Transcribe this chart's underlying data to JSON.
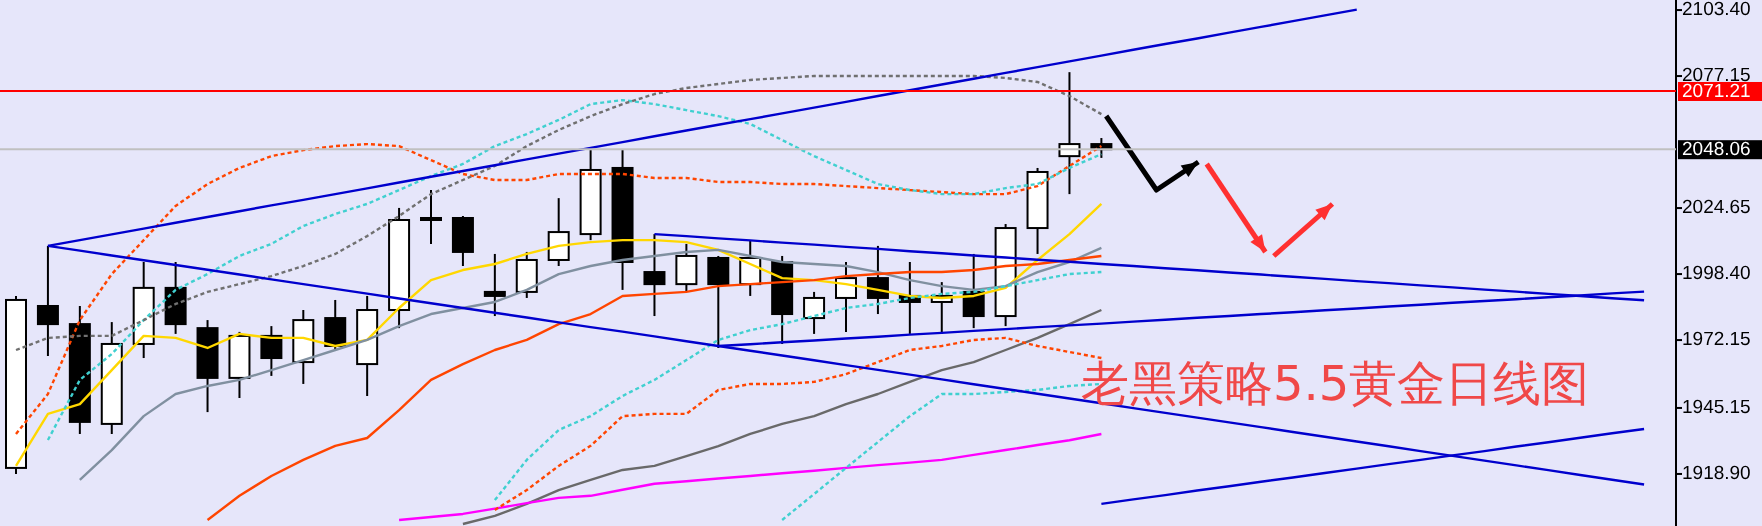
{
  "chart_data": {
    "type": "candlestick",
    "title": "老黑策略5.5黄金日线图",
    "categories": [
      null,
      null,
      null,
      null,
      null,
      null,
      null,
      null,
      null,
      null,
      null,
      null,
      null,
      null,
      null,
      null,
      null,
      null,
      null,
      null,
      null,
      null,
      null,
      null,
      null,
      null,
      null,
      null,
      null,
      null,
      null,
      null,
      null,
      null,
      null,
      null,
      null,
      null,
      null,
      null,
      null,
      null,
      null,
      null,
      null,
      null,
      null,
      null,
      null,
      null,
      null,
      null
    ],
    "ohlc": [
      [
        1921.3,
        1989.7,
        1918.9,
        1988.1
      ],
      [
        1985.7,
        2009.6,
        1965.8,
        1978.5
      ],
      [
        1978.5,
        1985.7,
        1934.8,
        1939.6
      ],
      [
        1938.8,
        1979.3,
        1934.8,
        1970.6
      ],
      [
        1970.6,
        2003.2,
        1965.0,
        1992.9
      ],
      [
        1992.9,
        2003.2,
        1974.6,
        1978.5
      ],
      [
        1976.9,
        1980.1,
        1943.5,
        1957.1
      ],
      [
        1957.1,
        1975.4,
        1949.1,
        1973.8
      ],
      [
        1973.8,
        1977.7,
        1957.9,
        1965.0
      ],
      [
        1963.4,
        1984.1,
        1954.7,
        1980.1
      ],
      [
        1980.9,
        1988.1,
        1968.2,
        1969.8
      ],
      [
        1962.6,
        1989.7,
        1949.9,
        1984.1
      ],
      [
        1984.1,
        2024.7,
        1976.9,
        2019.9
      ],
      [
        2020.7,
        2031.8,
        2010.4,
        2019.9
      ],
      [
        2020.7,
        2021.5,
        2001.6,
        2007.2
      ],
      [
        1991.3,
        2006.4,
        1981.7,
        1989.7
      ],
      [
        1991.3,
        2007.2,
        1988.9,
        2004.0
      ],
      [
        2004.0,
        2028.6,
        2001.6,
        2015.1
      ],
      [
        2014.3,
        2047.7,
        2011.9,
        2039.8
      ],
      [
        2040.6,
        2047.7,
        1992.1,
        2003.2
      ],
      [
        1999.2,
        2014.3,
        1981.7,
        1994.4
      ],
      [
        1994.4,
        2010.4,
        1991.3,
        2005.6
      ],
      [
        2004.8,
        2005.6,
        1969.0,
        1994.4
      ],
      [
        1994.4,
        2011.9,
        1989.7,
        2004.8
      ],
      [
        2003.2,
        2005.6,
        1970.6,
        1982.5
      ],
      [
        1980.9,
        1991.3,
        1974.6,
        1988.9
      ],
      [
        1988.9,
        2003.2,
        1975.4,
        1996.8
      ],
      [
        1996.8,
        2009.6,
        1982.5,
        1988.9
      ],
      [
        1989.7,
        2003.2,
        1974.6,
        1987.3
      ],
      [
        1987.3,
        1995.2,
        1974.6,
        1989.7
      ],
      [
        1991.3,
        2006.4,
        1976.9,
        1981.7
      ],
      [
        1981.7,
        2018.3,
        1977.7,
        2016.7
      ],
      [
        2016.7,
        2040.6,
        2006.4,
        2039.0
      ],
      [
        2045.3,
        2078.7,
        2030.2,
        2050.1
      ],
      [
        2050.1,
        2052.5,
        2044.6,
        2048.06
      ],
      null,
      null,
      null,
      null,
      null,
      null,
      null,
      null,
      null,
      null,
      null,
      null,
      null,
      null,
      null,
      null,
      null
    ],
    "series": [
      {
        "type": "line",
        "color": "#ffd700",
        "values": [
          1922.1,
          1942.8,
          1946.7,
          1960.2,
          1973.8,
          1973.0,
          1969.0,
          1974.6,
          1973.0,
          1973.0,
          1969.8,
          1972.2,
          1984.9,
          1996.0,
          2000.0,
          2002.4,
          2006.4,
          2009.6,
          2011.1,
          2011.9,
          2011.9,
          2011.1,
          2008.0,
          2002.4,
          1996.8,
          1996.0,
          1994.4,
          1992.1,
          1989.7,
          1988.9,
          1989.7,
          1992.9,
          2004.0,
          2014.3,
          2026.3,
          null,
          null,
          null,
          null,
          null,
          null,
          null,
          null,
          null,
          null,
          null,
          null,
          null,
          null,
          null,
          null,
          null
        ]
      },
      {
        "type": "line",
        "color": "#8090a0",
        "values": [
          null,
          null,
          1916.5,
          1928.4,
          1941.9,
          1950.7,
          1953.9,
          1956.3,
          1960.2,
          1964.2,
          1968.2,
          1972.2,
          1977.7,
          1982.5,
          1984.9,
          1987.3,
          1992.1,
          1998.4,
          2001.6,
          2004.0,
          2005.6,
          2007.2,
          2008.0,
          2005.6,
          2003.2,
          2002.4,
          2001.6,
          1999.2,
          1996.0,
          1993.6,
          1992.1,
          1993.6,
          1999.2,
          2003.2,
          2008.8,
          null,
          null,
          null,
          null,
          null,
          null,
          null,
          null,
          null,
          null,
          null,
          null,
          null,
          null,
          null,
          null,
          null
        ]
      },
      {
        "type": "line",
        "color": "#ff4500",
        "values": [
          null,
          null,
          null,
          null,
          null,
          null,
          1900.6,
          1910.2,
          1918.1,
          1924.5,
          1930.1,
          1933.2,
          1944.3,
          1956.3,
          1962.6,
          1968.2,
          1972.2,
          1978.5,
          1982.5,
          1989.7,
          1990.5,
          1991.3,
          1993.6,
          1994.4,
          1995.2,
          1996.0,
          1997.6,
          1998.4,
          1999.2,
          1999.2,
          2000.0,
          2001.6,
          2002.4,
          2004.0,
          2005.6,
          null,
          null,
          null,
          null,
          null,
          null,
          null,
          null,
          null,
          null,
          null,
          null,
          null,
          null,
          null,
          null,
          null
        ]
      },
      {
        "type": "line",
        "color": "#696969",
        "values": [
          null,
          null,
          null,
          null,
          null,
          null,
          null,
          null,
          null,
          null,
          null,
          null,
          null,
          null,
          1899.0,
          1902.2,
          1907.0,
          1912.5,
          1916.5,
          1920.5,
          1922.1,
          1926.0,
          1930.0,
          1934.8,
          1938.8,
          1941.9,
          1946.7,
          1950.7,
          1955.5,
          1960.2,
          1963.4,
          1968.2,
          1973.0,
          1978.5,
          1984.1,
          null,
          null,
          null,
          null,
          null,
          null,
          null,
          null,
          null,
          null,
          null,
          null,
          null,
          null,
          null,
          null,
          null
        ]
      },
      {
        "type": "line",
        "color": "#ff00ff",
        "values": [
          null,
          null,
          null,
          null,
          null,
          null,
          null,
          null,
          null,
          null,
          null,
          null,
          1900.6,
          1901.8,
          1903.0,
          1905.1,
          1907.3,
          1909.4,
          1910.2,
          1912.6,
          1915.0,
          1916.0,
          1917.1,
          1918.1,
          1919.2,
          1920.2,
          1921.3,
          1922.4,
          1923.4,
          1924.5,
          1926.5,
          1928.4,
          1930.4,
          1932.3,
          1934.8,
          null,
          null,
          null,
          null,
          null,
          null,
          null,
          null,
          null,
          null,
          null,
          null,
          null,
          null,
          null,
          null,
          null
        ]
      },
      {
        "type": "line",
        "color": "#ff4500",
        "line_style": "dashed",
        "values": [
          1934.8,
          1950.7,
          1980.1,
          1998.4,
          2011.9,
          2025.5,
          2034.2,
          2040.6,
          2045.3,
          2047.7,
          2049.3,
          2050.1,
          2049.3,
          2043.7,
          2038.2,
          2035.8,
          2035.8,
          2038.2,
          2038.2,
          2038.2,
          2036.6,
          2036.6,
          2035.0,
          2035.0,
          2034.2,
          2034.2,
          2033.4,
          2032.6,
          2031.8,
          2031.0,
          2030.2,
          2030.2,
          2033.4,
          2041.4,
          2049.3,
          null,
          null,
          null,
          null,
          null,
          null,
          null,
          null,
          null,
          null,
          null,
          null,
          null,
          null,
          null,
          null,
          null
        ]
      },
      {
        "type": "line",
        "color": "#ff4500",
        "line_style": "dashed",
        "values": [
          null,
          null,
          null,
          null,
          null,
          null,
          null,
          null,
          null,
          null,
          null,
          null,
          null,
          null,
          null,
          1904.6,
          1912.5,
          1922.1,
          1930.1,
          1941.9,
          1942.8,
          1942.8,
          1952.3,
          1954.7,
          1954.7,
          1955.5,
          1958.6,
          1963.4,
          1968.2,
          1969.8,
          1972.2,
          1973.0,
          1969.8,
          1967.4,
          1965.0,
          null,
          null,
          null,
          null,
          null,
          null,
          null,
          null,
          null,
          null,
          null,
          null,
          null,
          null,
          null,
          null,
          null
        ]
      },
      {
        "type": "line",
        "color": "#40d0d0",
        "line_style": "dashed",
        "values": [
          null,
          1932.4,
          1956.3,
          1966.6,
          1980.1,
          1992.1,
          1998.4,
          2005.6,
          2010.4,
          2017.5,
          2022.3,
          2026.3,
          2031.8,
          2037.4,
          2042.2,
          2049.3,
          2054.1,
          2059.7,
          2066.0,
          2067.6,
          2066.0,
          2063.6,
          2061.2,
          2058.1,
          2051.7,
          2045.3,
          2039.8,
          2034.2,
          2031.8,
          2030.2,
          2030.2,
          2032.6,
          2034.2,
          2040.6,
          2046.1,
          null,
          null,
          null,
          null,
          null,
          null,
          null,
          null,
          null,
          null,
          null,
          null,
          null,
          null,
          null,
          null,
          null
        ]
      },
      {
        "type": "line",
        "color": "#40d0d0",
        "line_style": "dashed",
        "values": [
          null,
          null,
          null,
          null,
          null,
          null,
          null,
          null,
          null,
          null,
          null,
          null,
          null,
          null,
          null,
          1908.5,
          1924.5,
          1936.4,
          1941.9,
          1949.9,
          1956.3,
          1964.2,
          1972.2,
          1976.1,
          1978.5,
          1981.7,
          1984.9,
          1986.5,
          1988.9,
          1990.5,
          1991.3,
          1993.6,
          1996.0,
          1998.4,
          1999.2,
          null,
          null,
          null,
          null,
          null,
          null,
          null,
          null,
          null,
          null,
          null,
          null,
          null,
          null,
          null,
          null,
          null
        ]
      },
      {
        "type": "line",
        "color": "#40d0d0",
        "line_style": "dashed",
        "values": [
          null,
          null,
          null,
          null,
          null,
          null,
          null,
          null,
          null,
          null,
          null,
          null,
          null,
          null,
          null,
          null,
          null,
          null,
          null,
          null,
          null,
          null,
          null,
          null,
          1900.6,
          1910.9,
          1921.3,
          1931.6,
          1941.9,
          1950.7,
          1950.7,
          1951.5,
          1952.3,
          1953.9,
          1954.7,
          null,
          null,
          null,
          null,
          null,
          null,
          null,
          null,
          null,
          null,
          null,
          null,
          null,
          null,
          null,
          null,
          null
        ]
      },
      {
        "type": "line",
        "color": "#707070",
        "line_style": "dashed",
        "values": [
          1968.2,
          1973.0,
          1973.8,
          1973.8,
          1980.1,
          1986.5,
          1991.3,
          1994.4,
          1997.6,
          2001.6,
          2006.4,
          2013.5,
          2021.5,
          2030.2,
          2035.8,
          2041.4,
          2049.3,
          2055.7,
          2061.2,
          2066.0,
          2070.0,
          2072.4,
          2074.0,
          2075.6,
          2076.4,
          2077.2,
          2077.2,
          2077.2,
          2077.2,
          2077.2,
          2077.2,
          2076.4,
          2074.8,
          2069.2,
          2062.0,
          null,
          null,
          null,
          null,
          null,
          null,
          null,
          null,
          null,
          null,
          null,
          null,
          null,
          null,
          null,
          null,
          null
        ]
      },
      {
        "type": "line",
        "color": "#0000cd",
        "values": [
          null,
          2009.6,
          2011.9,
          2014.2,
          2016.5,
          2018.8,
          2021.1,
          2023.4,
          2025.7,
          2027.9,
          2030.2,
          2032.5,
          2034.8,
          2037.1,
          2039.4,
          2041.7,
          2044.0,
          2046.3,
          2048.6,
          2050.9,
          2053.2,
          2055.5,
          2057.8,
          2060.0,
          2062.3,
          2064.6,
          2066.9,
          2069.2,
          2071.5,
          2073.8,
          2076.1,
          2078.4,
          2080.7,
          2083.0,
          2085.3,
          2087.6,
          2089.9,
          2092.1,
          2094.4,
          2096.7,
          2099.0,
          2101.3,
          2103.6,
          null,
          null,
          null,
          null,
          null,
          null,
          null,
          null,
          null
        ]
      },
      {
        "type": "line",
        "color": "#0000cd",
        "values": [
          null,
          2009.6,
          2007.7,
          2005.8,
          2003.9,
          2002.0,
          2000.1,
          1998.2,
          1996.3,
          1994.4,
          1992.5,
          1990.6,
          1988.7,
          1986.8,
          1984.9,
          1983.0,
          1981.1,
          1979.2,
          1977.3,
          1975.5,
          1973.6,
          1971.7,
          1969.8,
          1967.9,
          1966.0,
          1964.1,
          1962.2,
          1960.3,
          1958.4,
          1956.5,
          1954.6,
          1952.7,
          1950.8,
          1948.9,
          1947.0,
          1945.1,
          1943.2,
          1941.3,
          1939.4,
          1937.5,
          1935.6,
          1933.7,
          1931.8,
          1929.9,
          1928.0,
          1926.1,
          1924.2,
          1922.3,
          1920.4,
          1918.5,
          1916.6,
          1914.7
        ]
      },
      {
        "type": "line",
        "color": "#0000cd",
        "values": [
          null,
          null,
          null,
          null,
          null,
          null,
          null,
          null,
          null,
          null,
          null,
          null,
          null,
          null,
          null,
          null,
          null,
          null,
          null,
          null,
          2014.3,
          2013.5,
          2012.6,
          2011.8,
          2010.9,
          2010.1,
          2009.2,
          2008.4,
          2007.5,
          2006.7,
          2005.8,
          2005.0,
          2004.1,
          2003.3,
          2002.4,
          2001.6,
          2000.7,
          1999.9,
          1999.0,
          1998.2,
          1997.3,
          1996.5,
          1995.6,
          1994.8,
          1993.9,
          1993.1,
          1992.2,
          1991.4,
          1990.5,
          1989.7,
          1988.8,
          1988.0
        ]
      },
      {
        "type": "line",
        "color": "#0000cd",
        "values": [
          null,
          null,
          null,
          null,
          null,
          null,
          null,
          null,
          null,
          null,
          null,
          null,
          null,
          null,
          null,
          null,
          null,
          null,
          null,
          null,
          null,
          null,
          1969.8,
          1970.5,
          1971.3,
          1972.0,
          1972.8,
          1973.5,
          1974.3,
          1975.0,
          1975.8,
          1976.5,
          1977.3,
          1978.0,
          1978.7,
          1979.5,
          1980.2,
          1981.0,
          1981.7,
          1982.5,
          1983.2,
          1984.0,
          1984.7,
          1985.5,
          1986.2,
          1987.0,
          1987.7,
          1988.4,
          1989.2,
          1989.9,
          1990.7,
          1991.4
        ]
      },
      {
        "type": "line",
        "color": "#0000cd",
        "values": [
          null,
          null,
          null,
          null,
          null,
          null,
          null,
          null,
          null,
          null,
          null,
          null,
          null,
          null,
          null,
          null,
          null,
          null,
          null,
          null,
          null,
          null,
          null,
          null,
          null,
          null,
          null,
          null,
          null,
          null,
          null,
          null,
          null,
          null,
          1907.0,
          1908.8,
          1910.5,
          1912.3,
          1914.0,
          1915.8,
          1917.5,
          1919.3,
          1921.0,
          1922.8,
          1924.5,
          1926.3,
          1928.0,
          1929.8,
          1931.5,
          1933.3,
          1935.1,
          1936.8
        ]
      }
    ],
    "ylim": [
      1898.2,
      2107.4
    ],
    "yticks": [
      {
        "value": 2103.4,
        "label": "2103.40"
      },
      {
        "value": 2077.15,
        "label": "2077.15"
      },
      {
        "value": 2024.65,
        "label": "2024.65"
      },
      {
        "value": 1998.4,
        "label": "1998.40"
      },
      {
        "value": 1972.15,
        "label": "1972.15"
      },
      {
        "value": 1945.15,
        "label": "1945.15"
      },
      {
        "value": 1918.9,
        "label": "1918.90"
      }
    ],
    "ref_lines": [
      {
        "axis": "y",
        "value": 2071.21,
        "label": "2071.21",
        "color": "#ff0000"
      },
      {
        "axis": "y",
        "value": 2048.06,
        "label": "2048.06",
        "color": "#c0c0c0"
      }
    ],
    "tick_labels": "y"
  }
}
